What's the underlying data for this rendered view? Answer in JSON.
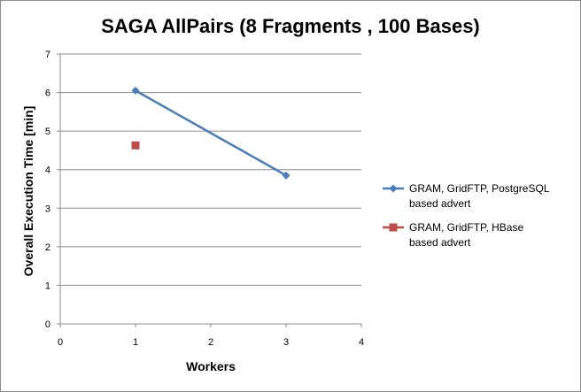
{
  "chart_data": {
    "type": "line",
    "title": "SAGA AllPairs (8 Fragments , 100 Bases)",
    "xlabel": "Workers",
    "ylabel": "Overall Execution Time [min]",
    "xlim": [
      0,
      4
    ],
    "ylim": [
      0,
      7
    ],
    "x_ticks": [
      "0",
      "1",
      "2",
      "3",
      "4"
    ],
    "y_ticks": [
      "0",
      "1",
      "2",
      "3",
      "4",
      "5",
      "6",
      "7"
    ],
    "grid": "horizontal",
    "legend_position": "right",
    "series": [
      {
        "name_lines": [
          "GRAM, GridFTP, PostgreSQL",
          "based advert"
        ],
        "marker": "diamond",
        "color": "#4a7ebb",
        "points": [
          {
            "x": 1,
            "y": 6.05
          },
          {
            "x": 3,
            "y": 3.85
          }
        ]
      },
      {
        "name_lines": [
          "GRAM, GridFTP, HBase",
          "based advert"
        ],
        "marker": "square",
        "color": "#be4b48",
        "points": [
          {
            "x": 1,
            "y": 4.63
          }
        ]
      }
    ]
  }
}
